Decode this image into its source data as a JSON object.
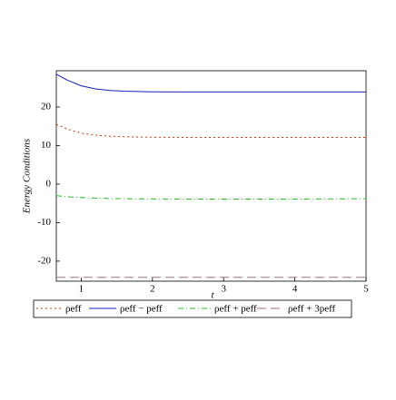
{
  "chart_data": {
    "type": "line",
    "x_label": "t",
    "y_label": "Energy Conditions",
    "x": [
      0.65,
      0.8,
      1,
      1.2,
      1.4,
      1.6,
      1.8,
      2,
      2.5,
      3,
      3.5,
      4,
      4.5,
      5
    ],
    "series": [
      {
        "name": "ρeff",
        "color": "#d03010",
        "dash": "2,3",
        "values": [
          15.5,
          14.3,
          13.2,
          12.7,
          12.4,
          12.3,
          12.2,
          12.15,
          12.1,
          12.1,
          12.1,
          12.1,
          12.1,
          12.1
        ]
      },
      {
        "name": "ρeff − peff",
        "color": "#1020c0",
        "dash": "none",
        "values": [
          28.5,
          27,
          25.5,
          24.7,
          24.3,
          24.1,
          24.0,
          23.95,
          23.9,
          23.9,
          23.9,
          23.9,
          23.9,
          23.9
        ]
      },
      {
        "name": "ρeff + peff",
        "color": "#20c020",
        "dash": "6,3,1,3",
        "values": [
          -3,
          -3.3,
          -3.5,
          -3.65,
          -3.75,
          -3.8,
          -3.85,
          -3.85,
          -3.9,
          -3.9,
          -3.9,
          -3.9,
          -3.85,
          -3.8
        ]
      },
      {
        "name": "ρeff + 3peff",
        "color": "#a07070",
        "dash": "10,5",
        "values": [
          -24.2,
          -24.2,
          -24.2,
          -24.2,
          -24.2,
          -24.2,
          -24.2,
          -24.2,
          -24.2,
          -24.2,
          -24.2,
          -24.2,
          -24.2,
          -24.2
        ]
      }
    ],
    "xlim": [
      0.65,
      5
    ],
    "xticks": [
      1,
      2,
      3,
      4,
      5
    ],
    "ylim": [
      -25.2,
      29.4
    ],
    "yticks": [
      -20,
      -10,
      0,
      10,
      20
    ]
  }
}
